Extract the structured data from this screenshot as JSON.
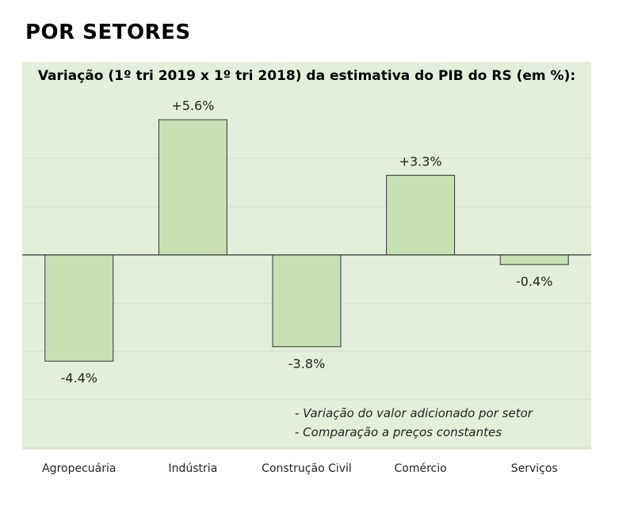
{
  "heading": "POR SETORES",
  "notes": [
    "- Variação do valor adicionado por setor",
    "- Comparação a preços constantes"
  ],
  "chart_data": {
    "type": "bar",
    "title": "Variação (1º tri 2019 x 1º tri 2018) da estimativa do PIB do RS (em %):",
    "categories": [
      "Agropecuária",
      "Indústria",
      "Construção Civil",
      "Comércio",
      "Serviços"
    ],
    "values": [
      -4.4,
      5.6,
      -3.8,
      3.3,
      -0.4
    ],
    "data_labels": [
      "-4.4%",
      "+5.6%",
      "-3.8%",
      "+3.3%",
      "-0.4%"
    ],
    "ylim": [
      -8,
      8
    ],
    "grid": true,
    "bar_color": "#c7e0b4",
    "bar_edge_color": "#333333",
    "panel_color": "#e3efdb"
  }
}
